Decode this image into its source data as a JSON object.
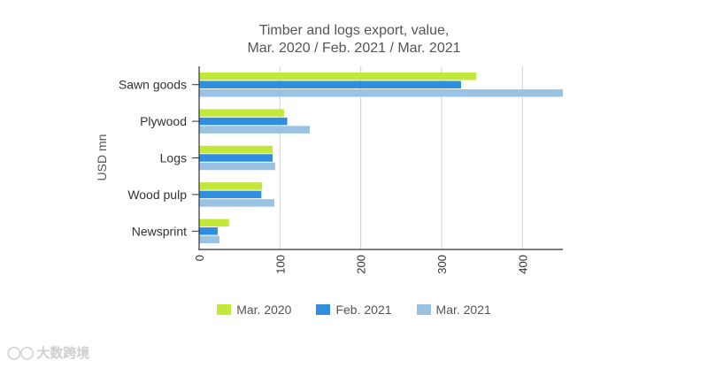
{
  "colors": {
    "series_1": "#c2e83a",
    "series_2": "#2f8fde",
    "series_3": "#99c2e3",
    "grid": "#d0d0d0",
    "axis": "#333333",
    "text": "#555555"
  },
  "chart_data": {
    "type": "bar",
    "orientation": "horizontal",
    "title": "Timber and logs export, value,",
    "subtitle": "Mar. 2020 / Feb. 2021 / Mar. 2021",
    "xlabel": "",
    "ylabel": "USD mn",
    "xlim": [
      0,
      450
    ],
    "xticks": [
      0,
      100,
      200,
      300,
      400
    ],
    "grid": true,
    "legend_position": "bottom",
    "categories": [
      "Sawn goods",
      "Plywood",
      "Logs",
      "Wood pulp",
      "Newsprint"
    ],
    "series": [
      {
        "name": "Mar. 2020",
        "values": [
          343,
          105,
          91,
          78,
          37
        ]
      },
      {
        "name": "Feb. 2021",
        "values": [
          324,
          109,
          91,
          77,
          23
        ]
      },
      {
        "name": "Mar. 2021",
        "values": [
          452,
          137,
          94,
          93,
          25
        ]
      }
    ]
  },
  "watermark": {
    "icon": "logo-icon",
    "text": "大数跨境"
  }
}
